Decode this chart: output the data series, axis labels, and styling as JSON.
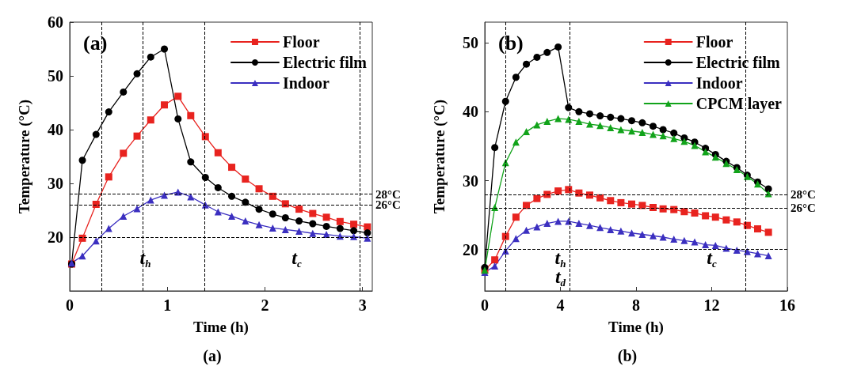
{
  "chart_data": [
    {
      "type": "line",
      "title": "(a)",
      "xlabel": "Time (h)",
      "ylabel": "Temperature (°C)",
      "xlim": [
        0,
        3.1
      ],
      "xticks": [
        0,
        1,
        2,
        3
      ],
      "ylim": [
        10,
        60
      ],
      "yticks": [
        20,
        30,
        40,
        50,
        60
      ],
      "legend": "top right",
      "line_style": "solid",
      "series": [
        {
          "name": "Floor",
          "color": "#e8231f",
          "marker": "square",
          "x": [
            0.02,
            0.13,
            0.27,
            0.4,
            0.55,
            0.69,
            0.83,
            0.97,
            1.11,
            1.24,
            1.39,
            1.52,
            1.66,
            1.8,
            1.94,
            2.08,
            2.21,
            2.35,
            2.49,
            2.63,
            2.77,
            2.91,
            3.05
          ],
          "values": [
            15,
            19.8,
            26.1,
            31.2,
            35.6,
            38.8,
            41.8,
            44.6,
            46.2,
            42.6,
            38.7,
            35.7,
            33.0,
            30.8,
            29.0,
            27.6,
            26.2,
            25.2,
            24.4,
            23.7,
            22.9,
            22.4,
            21.9
          ]
        },
        {
          "name": "Electric film",
          "color": "#000000",
          "marker": "circle",
          "x": [
            0.02,
            0.13,
            0.27,
            0.4,
            0.55,
            0.69,
            0.83,
            0.97,
            1.11,
            1.24,
            1.39,
            1.52,
            1.66,
            1.8,
            1.94,
            2.08,
            2.21,
            2.35,
            2.49,
            2.63,
            2.77,
            2.91,
            3.05
          ],
          "values": [
            15,
            34.3,
            39.1,
            43.3,
            47.0,
            50.4,
            53.5,
            55.0,
            42.0,
            34.0,
            31.1,
            29.2,
            27.6,
            26.5,
            25.2,
            24.3,
            23.6,
            23.0,
            22.5,
            22.0,
            21.6,
            21.2,
            20.8
          ]
        },
        {
          "name": "Indoor",
          "color": "#3b2fc0",
          "marker": "triangle",
          "x": [
            0.02,
            0.13,
            0.27,
            0.4,
            0.55,
            0.69,
            0.83,
            0.97,
            1.11,
            1.24,
            1.39,
            1.52,
            1.66,
            1.8,
            1.94,
            2.08,
            2.21,
            2.35,
            2.49,
            2.63,
            2.77,
            2.91,
            3.05
          ],
          "values": [
            15.2,
            16.5,
            19.3,
            21.6,
            23.9,
            25.3,
            26.9,
            27.8,
            28.4,
            27.5,
            26.0,
            24.7,
            23.9,
            23.0,
            22.3,
            21.7,
            21.4,
            21.1,
            20.7,
            20.5,
            20.2,
            20.1,
            19.8
          ]
        }
      ],
      "ref_lines": [
        {
          "axis": "y",
          "value": 28,
          "label": "28°C",
          "color": "#000000",
          "line_style": "dashed"
        },
        {
          "axis": "y",
          "value": 26,
          "label": "26°C",
          "color": "#000000",
          "line_style": "dashed"
        },
        {
          "axis": "y",
          "value": 20,
          "label": null,
          "color": "#000000",
          "line_style": "dashed"
        },
        {
          "axis": "x",
          "value": 0.33,
          "label": null,
          "color": "#000000",
          "line_style": "dashed"
        },
        {
          "axis": "x",
          "value": 0.75,
          "label": null,
          "color": "#000000",
          "line_style": "dashed"
        },
        {
          "axis": "x",
          "value": 1.38,
          "label": null,
          "color": "#000000",
          "line_style": "dashed"
        },
        {
          "axis": "x",
          "value": 2.97,
          "label": null,
          "color": "#000000",
          "line_style": "dashed"
        }
      ],
      "annotations": [
        "t$_{h}$",
        "t$_{c}$",
        "(a)"
      ]
    },
    {
      "type": "line",
      "title": "(b)",
      "xlabel": "Time (h)",
      "ylabel": "Temperature (°C)",
      "xlim": [
        0,
        16
      ],
      "xticks": [
        0,
        4,
        8,
        12,
        16
      ],
      "ylim": [
        14,
        53
      ],
      "yticks": [
        20,
        30,
        40,
        50
      ],
      "legend": "top right",
      "line_style": "solid",
      "series": [
        {
          "name": "Floor",
          "color": "#e8231f",
          "marker": "square",
          "x": [
            0,
            0.53,
            1.1,
            1.65,
            2.2,
            2.76,
            3.3,
            3.88,
            4.43,
            4.98,
            5.55,
            6.1,
            6.65,
            7.2,
            7.77,
            8.33,
            8.9,
            9.43,
            10,
            10.55,
            11.1,
            11.67,
            12.2,
            12.77,
            13.33,
            13.88,
            14.43,
            15
          ],
          "values": [
            17,
            18.5,
            21.9,
            24.7,
            26.4,
            27.4,
            28.0,
            28.5,
            28.7,
            28.2,
            27.9,
            27.5,
            27.1,
            26.8,
            26.6,
            26.4,
            26.1,
            25.9,
            25.8,
            25.5,
            25.3,
            24.9,
            24.7,
            24.3,
            24.0,
            23.5,
            23.0,
            22.5
          ]
        },
        {
          "name": "Electric film",
          "color": "#000000",
          "marker": "circle",
          "x": [
            0,
            0.53,
            1.1,
            1.65,
            2.2,
            2.76,
            3.3,
            3.88,
            4.43,
            4.98,
            5.55,
            6.1,
            6.65,
            7.2,
            7.77,
            8.33,
            8.9,
            9.43,
            10,
            10.55,
            11.1,
            11.67,
            12.2,
            12.77,
            13.33,
            13.88,
            14.43,
            15
          ],
          "values": [
            17.4,
            34.8,
            41.5,
            45.0,
            46.9,
            47.9,
            48.6,
            49.4,
            40.6,
            40.0,
            39.7,
            39.4,
            39.2,
            39.0,
            38.7,
            38.4,
            37.9,
            37.4,
            36.9,
            36.2,
            35.6,
            34.7,
            33.8,
            32.8,
            31.9,
            30.8,
            29.8,
            28.8
          ]
        },
        {
          "name": "Indoor",
          "color": "#3b2fc0",
          "marker": "triangle",
          "x": [
            0,
            0.53,
            1.1,
            1.65,
            2.2,
            2.76,
            3.3,
            3.88,
            4.43,
            4.98,
            5.55,
            6.1,
            6.65,
            7.2,
            7.77,
            8.33,
            8.9,
            9.43,
            10,
            10.55,
            11.1,
            11.67,
            12.2,
            12.77,
            13.33,
            13.88,
            14.43,
            15
          ],
          "values": [
            16.7,
            17.6,
            19.8,
            21.6,
            22.8,
            23.3,
            23.8,
            24.1,
            24.1,
            23.8,
            23.5,
            23.2,
            22.9,
            22.7,
            22.4,
            22.2,
            22.0,
            21.8,
            21.5,
            21.3,
            21.1,
            20.7,
            20.6,
            20.2,
            19.9,
            19.7,
            19.4,
            19.1
          ]
        },
        {
          "name": "CPCM layer",
          "color": "#11a31a",
          "marker": "triangle",
          "x": [
            0,
            0.53,
            1.1,
            1.65,
            2.2,
            2.76,
            3.3,
            3.88,
            4.43,
            4.98,
            5.55,
            6.1,
            6.65,
            7.2,
            7.77,
            8.33,
            8.9,
            9.43,
            10,
            10.55,
            11.1,
            11.67,
            12.2,
            12.77,
            13.33,
            13.88,
            14.43,
            15
          ],
          "values": [
            17,
            26.1,
            32.6,
            35.6,
            37.1,
            38.1,
            38.6,
            39.0,
            38.9,
            38.6,
            38.2,
            38.0,
            37.7,
            37.4,
            37.2,
            37.0,
            36.7,
            36.5,
            36.1,
            35.7,
            35.1,
            34.2,
            33.4,
            32.5,
            31.6,
            30.6,
            29.5,
            28.1
          ]
        }
      ],
      "ref_lines": [
        {
          "axis": "y",
          "value": 28,
          "label": "28°C",
          "color": "#000000",
          "line_style": "dashed"
        },
        {
          "axis": "y",
          "value": 26,
          "label": "26°C",
          "color": "#000000",
          "line_style": "dashed"
        },
        {
          "axis": "y",
          "value": 20,
          "label": null,
          "color": "#000000",
          "line_style": "dashed"
        },
        {
          "axis": "x",
          "value": 1.1,
          "label": null,
          "color": "#000000",
          "line_style": "dashed"
        },
        {
          "axis": "x",
          "value": 4.5,
          "label": null,
          "color": "#000000",
          "line_style": "dashed"
        },
        {
          "axis": "x",
          "value": 13.8,
          "label": null,
          "color": "#000000",
          "line_style": "dashed"
        }
      ],
      "annotations": [
        "t$_{h}$",
        "t$_{c}$",
        "t$_{d}$",
        "(b)"
      ]
    }
  ]
}
